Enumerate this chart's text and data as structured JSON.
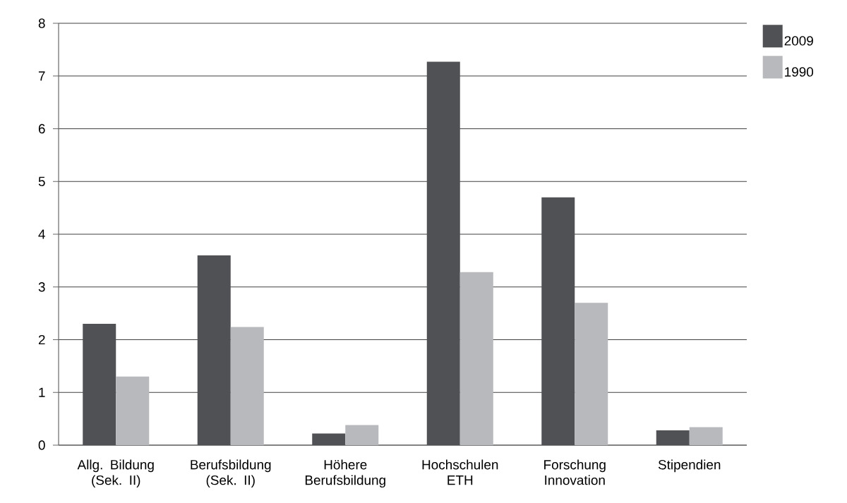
{
  "chart_data": {
    "type": "bar",
    "categories": [
      "Allg. Bildung (Sek. II)",
      "Berufsbildung (Sek. II)",
      "Höhere Berufsbildung",
      "Hochschulen ETH",
      "Forschung Innovation",
      "Stipendien"
    ],
    "series": [
      {
        "name": "2009",
        "color": "#505155",
        "values": [
          2.3,
          3.6,
          0.22,
          7.27,
          4.7,
          0.28
        ]
      },
      {
        "name": "1990",
        "color": "#b8b9bd",
        "values": [
          1.3,
          2.24,
          0.38,
          3.28,
          2.7,
          0.34
        ]
      }
    ],
    "ylim": [
      0,
      8
    ],
    "yticks": [
      0,
      1,
      2,
      3,
      4,
      5,
      6,
      7,
      8
    ],
    "grid": "y",
    "legend": "top right"
  }
}
